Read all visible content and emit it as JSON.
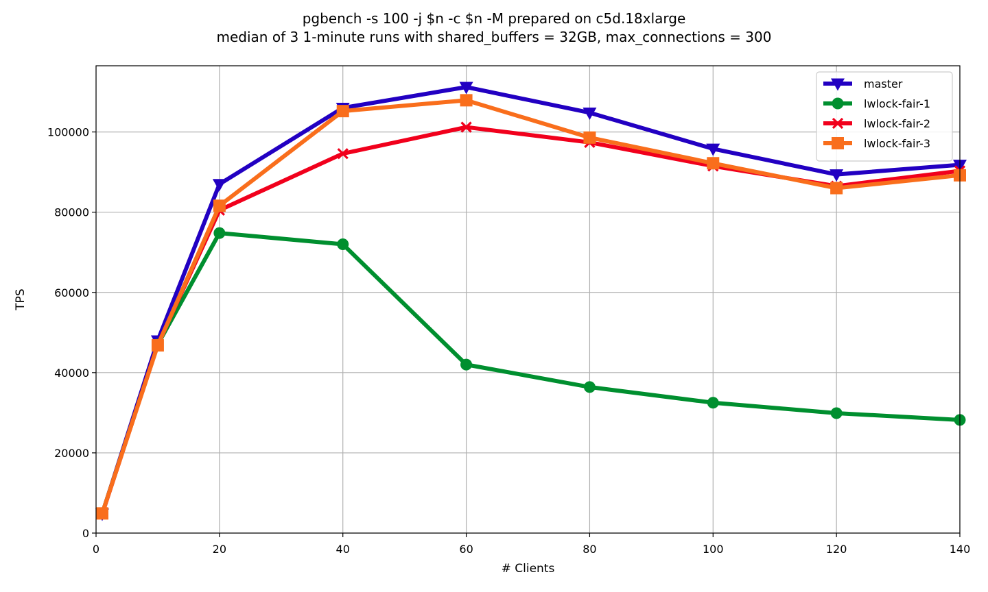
{
  "chart_data": {
    "type": "line",
    "title": "pgbench -s 100 -j $n -c $n -M prepared on c5d.18xlarge",
    "subtitle": "median of 3 1-minute runs with shared_buffers = 32GB, max_connections = 300",
    "xlabel": "# Clients",
    "ylabel": "TPS",
    "xlim": [
      0,
      140
    ],
    "ylim": [
      0,
      116500
    ],
    "xticks": [
      0,
      20,
      40,
      60,
      80,
      100,
      120,
      140
    ],
    "yticks": [
      0,
      20000,
      40000,
      60000,
      80000,
      100000
    ],
    "grid": true,
    "legend_position": "top-right",
    "x": [
      1,
      10,
      20,
      40,
      60,
      80,
      100,
      120,
      140
    ],
    "series": [
      {
        "name": "master",
        "color": "#2200c2",
        "marker": "triangle-down",
        "values": [
          4800,
          48000,
          87000,
          106000,
          111200,
          104800,
          95800,
          89400,
          91800
        ]
      },
      {
        "name": "lwlock-fair-1",
        "color": "#008f2f",
        "marker": "circle",
        "values": [
          4900,
          47000,
          74800,
          72000,
          42000,
          36400,
          32500,
          29900,
          28200
        ]
      },
      {
        "name": "lwlock-fair-2",
        "color": "#f1001c",
        "marker": "x",
        "values": [
          4800,
          47000,
          80500,
          94600,
          101200,
          97400,
          91500,
          86500,
          90300
        ]
      },
      {
        "name": "lwlock-fair-3",
        "color": "#f96e1c",
        "marker": "square",
        "values": [
          4900,
          46800,
          81600,
          105200,
          107900,
          98600,
          92200,
          86000,
          89200
        ]
      }
    ]
  }
}
